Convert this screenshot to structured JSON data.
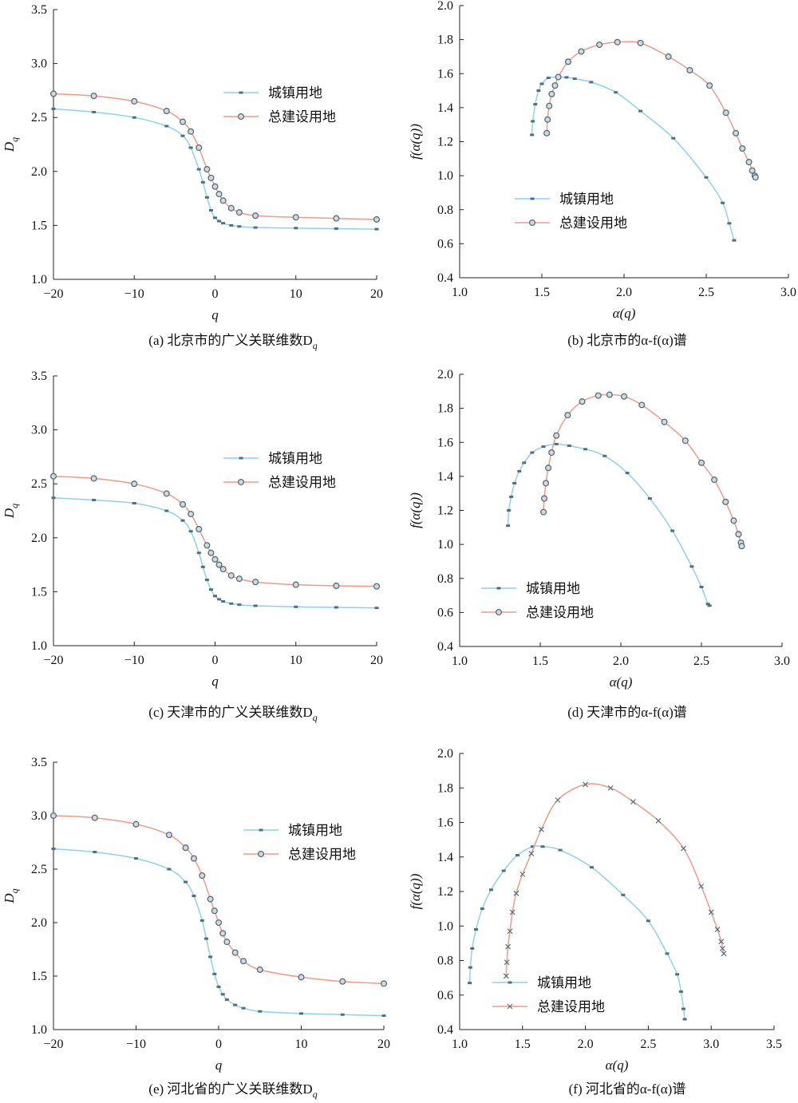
{
  "figure": {
    "captions": [
      "(a) 北京市的广义关联维数D",
      "(b) 北京市的α-f(α)谱",
      "(c) 天津市的广义关联维数D",
      "(d) 天津市的α-f(α)谱",
      "(e) 河北省的广义关联维数D",
      "(f) 河北省的α-f(α)谱"
    ]
  },
  "colors": {
    "urban": "#8ed1ef",
    "total": "#f19a86",
    "marker": "#4f6f7f",
    "axis": "#222222"
  },
  "chart_data": [
    {
      "id": "a",
      "type": "line",
      "caption": "(a) 北京市的广义关联维数D",
      "caption_sub": "q",
      "xlabel": "q",
      "ylabel": "D",
      "ylabel_sub": "q",
      "xlim": [
        -20,
        20
      ],
      "ylim": [
        1.0,
        3.5
      ],
      "xticks": [
        -20,
        -10,
        0,
        10,
        20
      ],
      "yticks": [
        1.0,
        1.5,
        2.0,
        2.5,
        3.0,
        3.5
      ],
      "legend_pos": "upper-right",
      "series": [
        {
          "name": "城镇用地",
          "marker": "dot",
          "color": "urban",
          "x": [
            -20,
            -15,
            -10,
            -6,
            -4,
            -3,
            -2,
            -1.5,
            -1,
            -0.5,
            0,
            0.5,
            1,
            2,
            3,
            5,
            10,
            15,
            20
          ],
          "y": [
            2.58,
            2.55,
            2.5,
            2.42,
            2.33,
            2.22,
            2.02,
            1.9,
            1.76,
            1.64,
            1.57,
            1.54,
            1.52,
            1.5,
            1.49,
            1.48,
            1.475,
            1.47,
            1.465
          ]
        },
        {
          "name": "总建设用地",
          "marker": "circle",
          "color": "total",
          "x": [
            -20,
            -15,
            -10,
            -6,
            -4,
            -3,
            -2,
            -1,
            -0.5,
            0,
            0.5,
            1,
            2,
            3,
            5,
            10,
            15,
            20
          ],
          "y": [
            2.72,
            2.7,
            2.65,
            2.56,
            2.46,
            2.37,
            2.22,
            2.02,
            1.94,
            1.86,
            1.79,
            1.73,
            1.66,
            1.62,
            1.59,
            1.575,
            1.565,
            1.555
          ]
        }
      ]
    },
    {
      "id": "b",
      "type": "line",
      "caption": "(b) 北京市的α-f(α)谱",
      "xlabel": "α(q)",
      "ylabel": "f(α(q))",
      "xlim": [
        1.0,
        3.0
      ],
      "ylim": [
        0.4,
        2.0
      ],
      "xticks": [
        1.0,
        1.5,
        2.0,
        2.5,
        3.0
      ],
      "yticks": [
        0.4,
        0.6,
        0.8,
        1.0,
        1.2,
        1.4,
        1.6,
        1.8,
        2.0
      ],
      "legend_pos": "lower-left",
      "series": [
        {
          "name": "城镇用地",
          "marker": "dot",
          "color": "urban",
          "x": [
            1.44,
            1.445,
            1.46,
            1.48,
            1.5,
            1.54,
            1.6,
            1.65,
            1.7,
            1.8,
            1.95,
            2.1,
            2.3,
            2.5,
            2.6,
            2.64,
            2.67
          ],
          "y": [
            1.24,
            1.32,
            1.42,
            1.5,
            1.54,
            1.575,
            1.58,
            1.578,
            1.57,
            1.55,
            1.49,
            1.38,
            1.22,
            0.99,
            0.84,
            0.72,
            0.62
          ]
        },
        {
          "name": "总建设用地",
          "marker": "circle",
          "color": "total",
          "x": [
            1.53,
            1.535,
            1.545,
            1.56,
            1.58,
            1.6,
            1.66,
            1.74,
            1.85,
            1.96,
            2.1,
            2.27,
            2.4,
            2.52,
            2.62,
            2.68,
            2.72,
            2.76,
            2.78,
            2.795,
            2.8
          ],
          "y": [
            1.25,
            1.33,
            1.41,
            1.48,
            1.53,
            1.58,
            1.67,
            1.73,
            1.77,
            1.785,
            1.78,
            1.7,
            1.62,
            1.53,
            1.37,
            1.25,
            1.16,
            1.08,
            1.03,
            1.0,
            0.99
          ]
        }
      ]
    },
    {
      "id": "c",
      "type": "line",
      "caption": "(c) 天津市的广义关联维数D",
      "caption_sub": "q",
      "xlabel": "q",
      "ylabel": "D",
      "ylabel_sub": "q",
      "xlim": [
        -20,
        20
      ],
      "ylim": [
        1.0,
        3.5
      ],
      "xticks": [
        -20,
        -10,
        0,
        10,
        20
      ],
      "yticks": [
        1.0,
        1.5,
        2.0,
        2.5,
        3.0,
        3.5
      ],
      "legend_pos": "upper-right",
      "series": [
        {
          "name": "城镇用地",
          "marker": "dot",
          "color": "urban",
          "x": [
            -20,
            -15,
            -10,
            -6,
            -4,
            -3,
            -2,
            -1.5,
            -1,
            -0.5,
            0,
            0.5,
            1,
            2,
            3,
            5,
            10,
            15,
            20
          ],
          "y": [
            2.37,
            2.35,
            2.32,
            2.25,
            2.16,
            2.06,
            1.86,
            1.73,
            1.61,
            1.52,
            1.46,
            1.43,
            1.41,
            1.39,
            1.38,
            1.37,
            1.36,
            1.355,
            1.35
          ]
        },
        {
          "name": "总建设用地",
          "marker": "circle",
          "color": "total",
          "x": [
            -20,
            -15,
            -10,
            -6,
            -4,
            -3,
            -2,
            -1,
            -0.5,
            0,
            0.5,
            1,
            2,
            3,
            5,
            10,
            15,
            20
          ],
          "y": [
            2.57,
            2.55,
            2.5,
            2.41,
            2.31,
            2.22,
            2.08,
            1.93,
            1.86,
            1.8,
            1.75,
            1.71,
            1.65,
            1.62,
            1.59,
            1.565,
            1.555,
            1.55
          ]
        }
      ]
    },
    {
      "id": "d",
      "type": "line",
      "caption": "(d) 天津市的α-f(α)谱",
      "xlabel": "α(q)",
      "ylabel": "f(α(q))",
      "xlim": [
        1.0,
        3.0
      ],
      "ylim": [
        0.4,
        2.0
      ],
      "xticks": [
        1.0,
        1.5,
        2.0,
        2.5,
        3.0
      ],
      "yticks": [
        0.4,
        0.6,
        0.8,
        1.0,
        1.2,
        1.4,
        1.6,
        1.8,
        2.0
      ],
      "legend_pos": "lower-left",
      "series": [
        {
          "name": "城镇用地",
          "marker": "dot",
          "color": "urban",
          "x": [
            1.3,
            1.305,
            1.32,
            1.34,
            1.37,
            1.4,
            1.45,
            1.52,
            1.6,
            1.68,
            1.78,
            1.9,
            2.04,
            2.18,
            2.32,
            2.44,
            2.5,
            2.54,
            2.55
          ],
          "y": [
            1.11,
            1.2,
            1.28,
            1.36,
            1.43,
            1.48,
            1.54,
            1.575,
            1.59,
            1.58,
            1.56,
            1.52,
            1.42,
            1.27,
            1.08,
            0.87,
            0.75,
            0.65,
            0.64
          ]
        },
        {
          "name": "总建设用地",
          "marker": "circle",
          "color": "total",
          "x": [
            1.52,
            1.525,
            1.535,
            1.55,
            1.57,
            1.6,
            1.67,
            1.76,
            1.86,
            1.93,
            2.02,
            2.13,
            2.27,
            2.4,
            2.5,
            2.58,
            2.65,
            2.7,
            2.73,
            2.745,
            2.75
          ],
          "y": [
            1.19,
            1.27,
            1.36,
            1.45,
            1.54,
            1.64,
            1.76,
            1.84,
            1.875,
            1.88,
            1.87,
            1.82,
            1.72,
            1.61,
            1.48,
            1.38,
            1.25,
            1.14,
            1.06,
            1.01,
            0.99
          ]
        }
      ]
    },
    {
      "id": "e",
      "type": "line",
      "caption": "(e) 河北省的广义关联维数D",
      "caption_sub": "q",
      "xlabel": "q",
      "ylabel": "D",
      "ylabel_sub": "q",
      "xlim": [
        -20,
        20
      ],
      "ylim": [
        1.0,
        3.5
      ],
      "xticks": [
        -20,
        -10,
        0,
        10,
        20
      ],
      "yticks": [
        1.0,
        1.5,
        2.0,
        2.5,
        3.0,
        3.5
      ],
      "legend_pos": "upper-right",
      "series": [
        {
          "name": "城镇用地",
          "marker": "dot",
          "color": "urban",
          "x": [
            -20,
            -15,
            -10,
            -6,
            -4,
            -3,
            -2,
            -1.5,
            -1,
            -0.5,
            0,
            0.5,
            1,
            2,
            3,
            5,
            10,
            15,
            20
          ],
          "y": [
            2.69,
            2.66,
            2.6,
            2.5,
            2.38,
            2.25,
            2.02,
            1.85,
            1.68,
            1.52,
            1.4,
            1.33,
            1.28,
            1.23,
            1.2,
            1.17,
            1.15,
            1.14,
            1.13
          ]
        },
        {
          "name": "总建设用地",
          "marker": "circle",
          "color": "total",
          "x": [
            -20,
            -15,
            -10,
            -6,
            -4,
            -3,
            -2,
            -1,
            -0.5,
            0,
            0.5,
            1,
            2,
            3,
            5,
            10,
            15,
            20
          ],
          "y": [
            3.0,
            2.98,
            2.92,
            2.82,
            2.7,
            2.6,
            2.44,
            2.22,
            2.11,
            2.0,
            1.9,
            1.82,
            1.72,
            1.64,
            1.56,
            1.49,
            1.45,
            1.43
          ]
        }
      ]
    },
    {
      "id": "f",
      "type": "line",
      "caption": "(f) 河北省的α-f(α)谱",
      "xlabel": "α(q)",
      "ylabel": "f(α(q))",
      "xlim": [
        1.0,
        3.5
      ],
      "ylim": [
        0.4,
        2.0
      ],
      "xticks": [
        1.0,
        1.5,
        2.0,
        2.5,
        3.0,
        3.5
      ],
      "yticks": [
        0.4,
        0.6,
        0.8,
        1.0,
        1.2,
        1.4,
        1.6,
        1.8,
        2.0
      ],
      "legend_pos": "lower-left",
      "series": [
        {
          "name": "城镇用地",
          "marker": "dot",
          "color": "urban",
          "x": [
            1.08,
            1.085,
            1.1,
            1.13,
            1.18,
            1.25,
            1.35,
            1.46,
            1.58,
            1.66,
            1.8,
            2.05,
            2.3,
            2.5,
            2.65,
            2.73,
            2.76,
            2.78,
            2.79
          ],
          "y": [
            0.67,
            0.76,
            0.87,
            0.98,
            1.1,
            1.21,
            1.32,
            1.41,
            1.46,
            1.46,
            1.44,
            1.34,
            1.18,
            1.03,
            0.84,
            0.72,
            0.62,
            0.52,
            0.46
          ]
        },
        {
          "name": "总建设用地",
          "marker": "x",
          "color": "total",
          "x": [
            1.37,
            1.375,
            1.385,
            1.4,
            1.42,
            1.45,
            1.5,
            1.57,
            1.65,
            1.78,
            2.0,
            2.2,
            2.38,
            2.58,
            2.78,
            2.92,
            3.0,
            3.05,
            3.08,
            3.09,
            3.1
          ],
          "y": [
            0.71,
            0.79,
            0.88,
            0.97,
            1.08,
            1.19,
            1.3,
            1.42,
            1.56,
            1.73,
            1.82,
            1.8,
            1.72,
            1.61,
            1.45,
            1.23,
            1.08,
            0.98,
            0.91,
            0.87,
            0.84
          ]
        }
      ]
    }
  ]
}
